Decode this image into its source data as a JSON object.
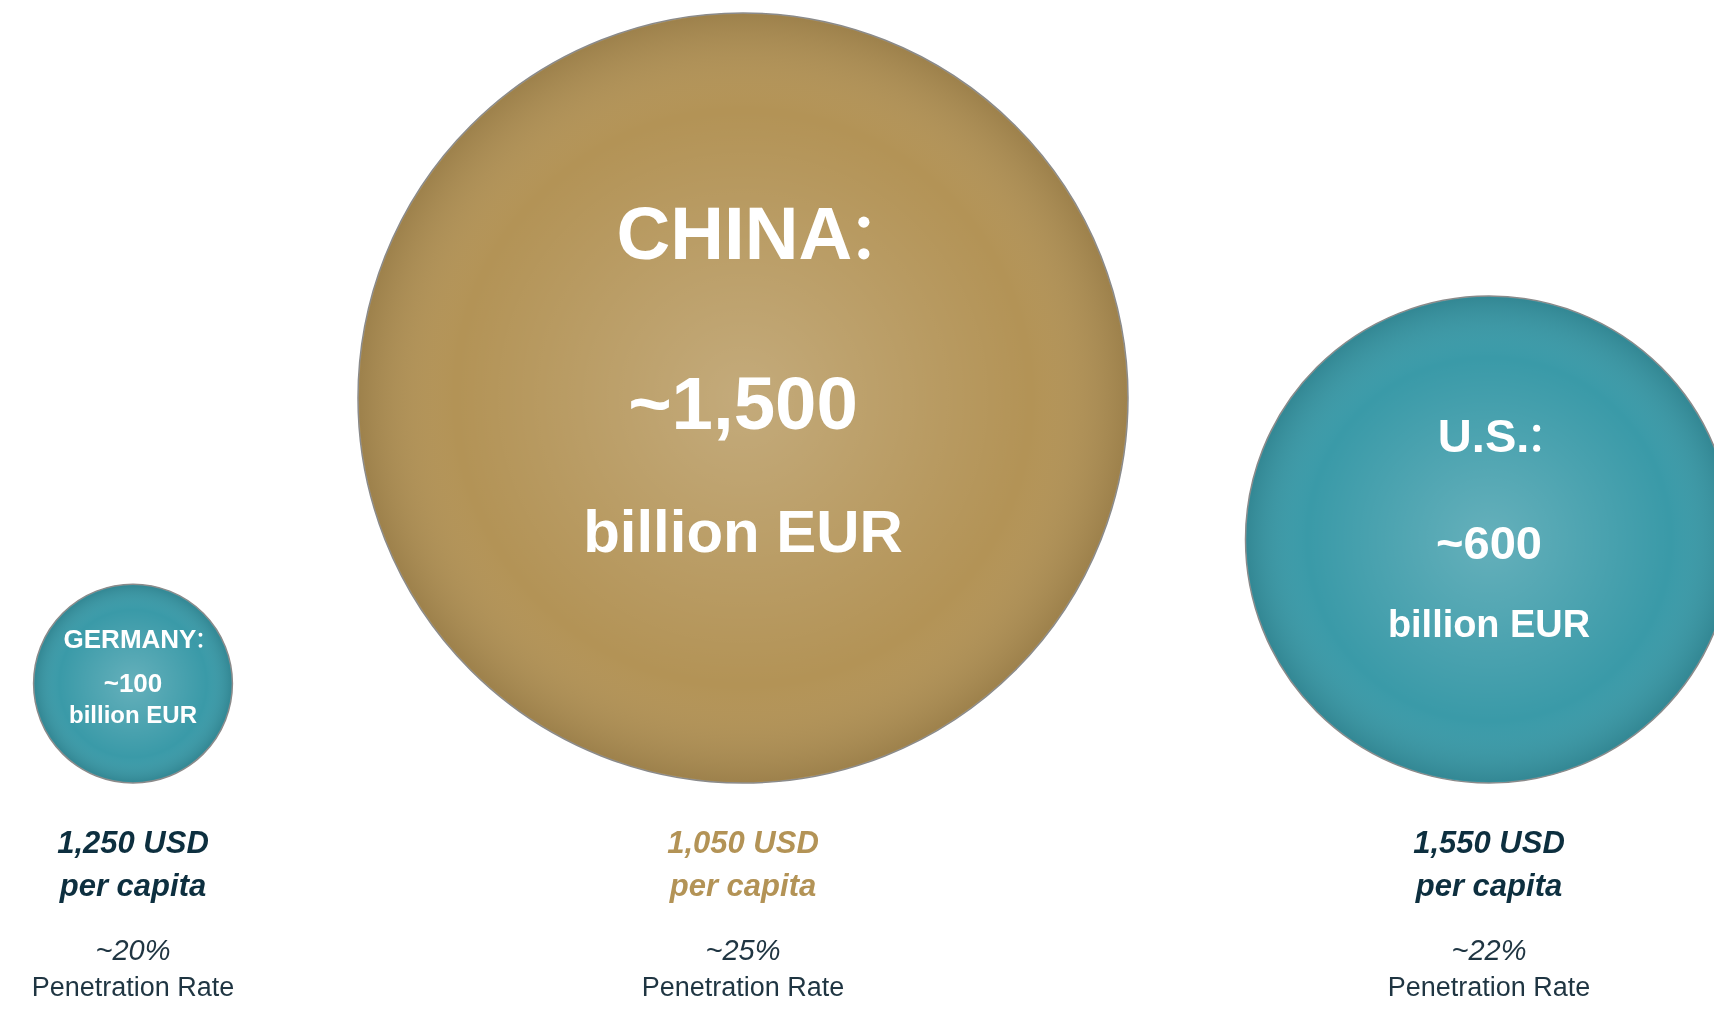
{
  "chart_data": {
    "type": "other",
    "categories": [
      "GERMANY",
      "CHINA",
      "U.S."
    ],
    "values": [
      100,
      1500,
      600
    ],
    "value_labels": [
      "~100 billion EUR",
      "~1,500 billion EUR",
      "~600 billion EUR"
    ],
    "colors": [
      "#3a9aa8",
      "#b39356",
      "#3a9aa8"
    ],
    "annotations": [
      "1,250 USD per capita",
      "~20%",
      "Penetration Rate",
      "1,050 USD per capita",
      "~25%",
      "Penetration Rate",
      "1,550 USD per capita",
      "~22%",
      "Penetration Rate"
    ]
  }
}
